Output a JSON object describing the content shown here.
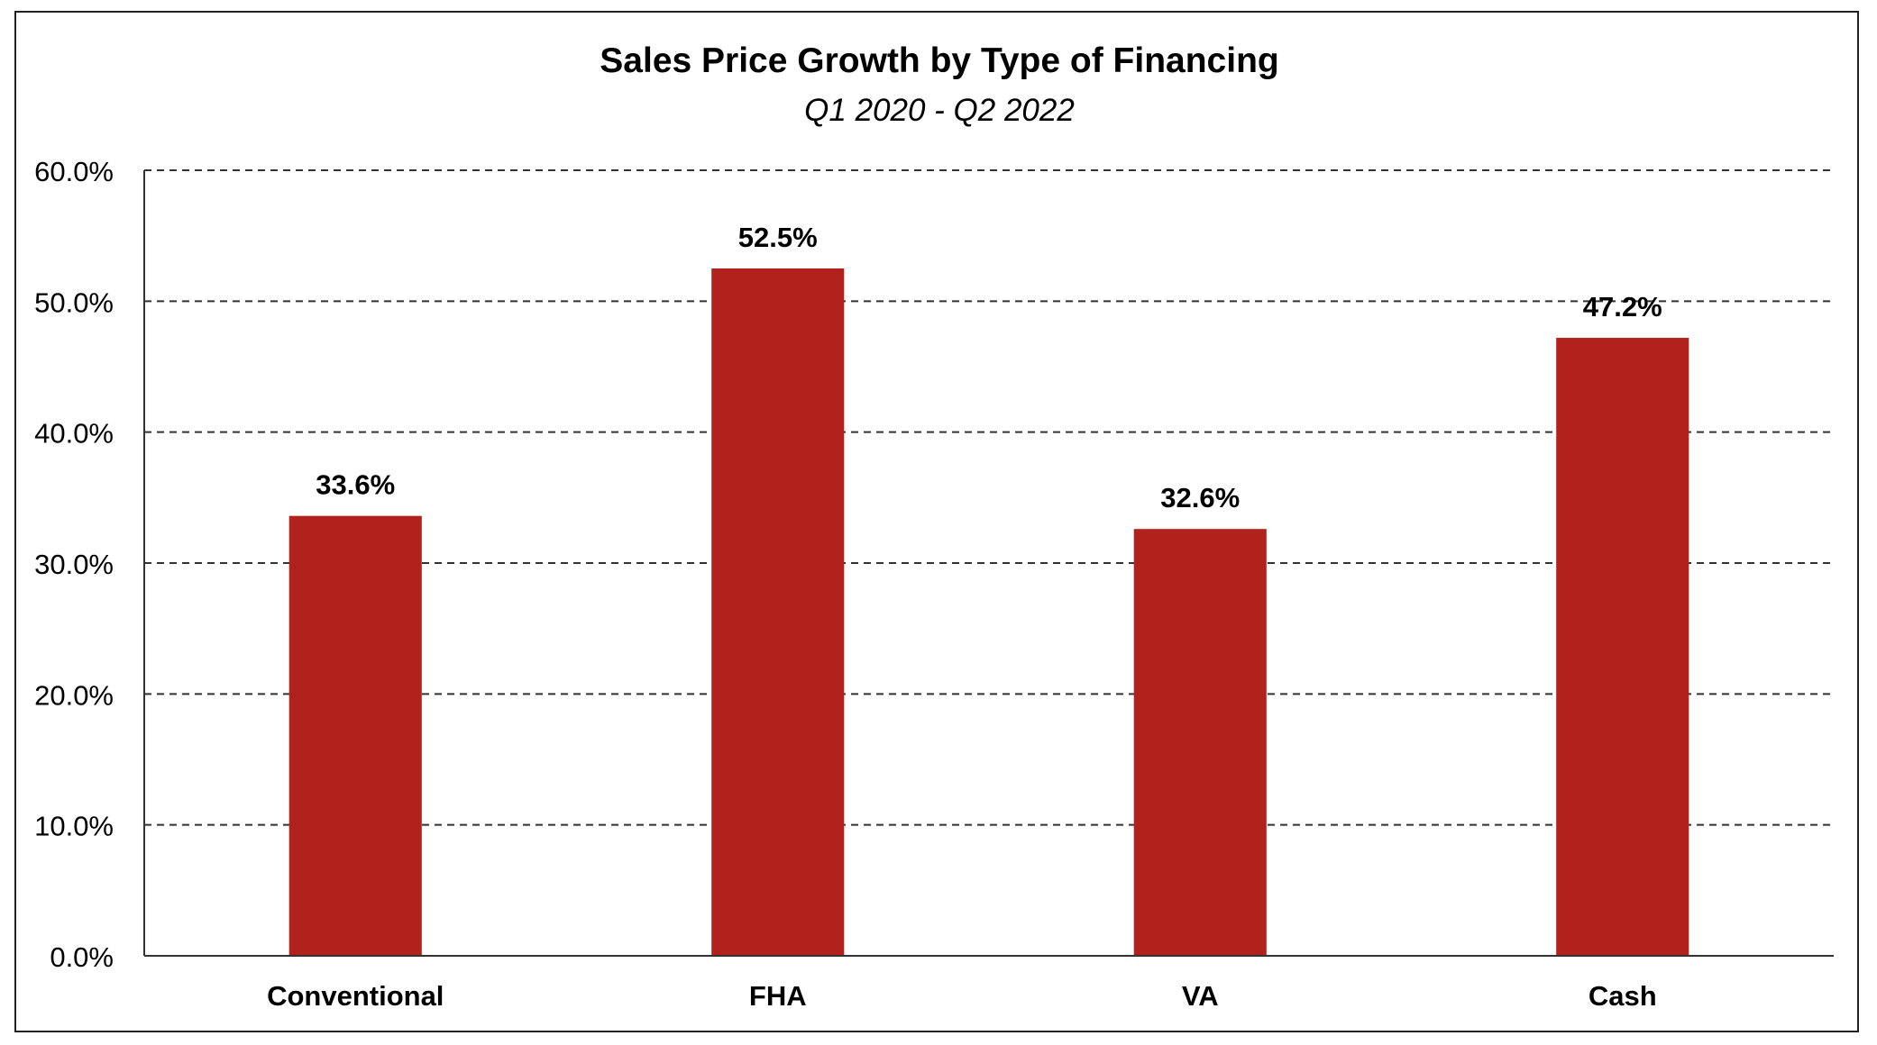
{
  "chart_data": {
    "type": "bar",
    "title": "Sales Price Growth by Type of Financing",
    "subtitle": "Q1 2020 - Q2 2022",
    "categories": [
      "Conventional",
      "FHA",
      "VA",
      "Cash"
    ],
    "values": [
      33.6,
      52.5,
      32.6,
      47.2
    ],
    "data_labels": [
      "33.6%",
      "52.5%",
      "32.6%",
      "47.2%"
    ],
    "ylim": [
      0,
      60
    ],
    "yticks": [
      0,
      10,
      20,
      30,
      40,
      50,
      60
    ],
    "ytick_labels": [
      "0.0%",
      "10.0%",
      "20.0%",
      "30.0%",
      "40.0%",
      "50.0%",
      "60.0%"
    ],
    "xlabel": "",
    "ylabel": "",
    "grid": "horizontal dashed",
    "legend": "none",
    "colors": {
      "bar": "#b0221b",
      "text": "#000000",
      "grid": "#333333",
      "axis": "#333333"
    }
  }
}
